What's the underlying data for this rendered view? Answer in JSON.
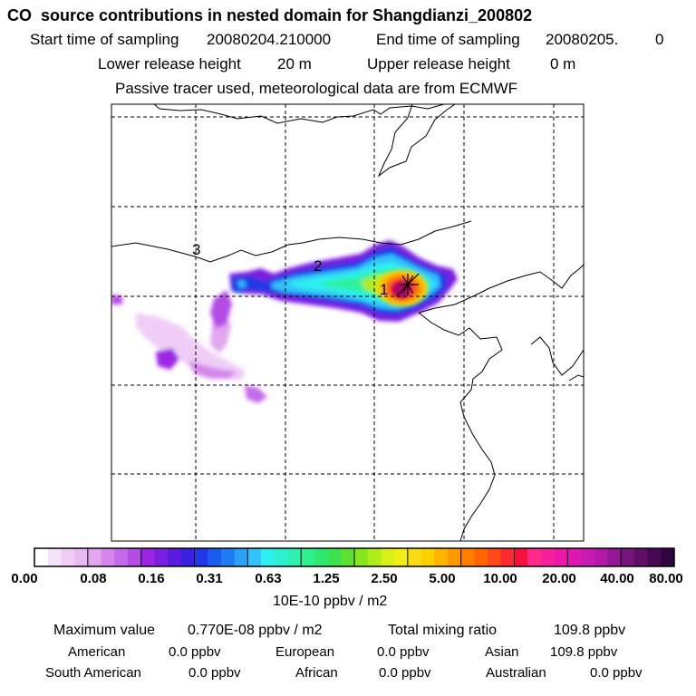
{
  "header": {
    "title": "CO  source contributions in nested domain for Shangdianzi_200802",
    "start_label": "Start time of sampling",
    "start_value": "20080204.210000",
    "end_label": "End time of sampling",
    "end_value": "20080205.",
    "end_suffix": "0",
    "lower_label": "Lower release height",
    "lower_value": "20 m",
    "upper_label": "Upper release height",
    "upper_value": "0 m",
    "note": "Passive tracer used, meteorological data are from ECMWF"
  },
  "map": {
    "markers": [
      "1",
      "2",
      "3"
    ],
    "receptor_symbol": "asterisk"
  },
  "colorbar": {
    "ticks": [
      "0.00",
      "0.08",
      "0.16",
      "0.31",
      "0.63",
      "1.25",
      "2.50",
      "5.00",
      "10.00",
      "20.00",
      "40.00",
      "80.00"
    ],
    "unit": "10E-10 ppbv / m2",
    "colors": [
      "#ffffff",
      "#f6e3fb",
      "#efcdf7",
      "#e8b9f3",
      "#e2a6ef",
      "#d486ec",
      "#c56ae8",
      "#b44ce6",
      "#9c25e3",
      "#7a1ee0",
      "#5a1cdc",
      "#3a20e0",
      "#2238e6",
      "#1a5cf0",
      "#1f7cf5",
      "#2aa0f8",
      "#33c2fa",
      "#2ff0f0",
      "#2ef0d0",
      "#2df0b0",
      "#2df090",
      "#2ee870",
      "#3ee04e",
      "#5ee030",
      "#84e41e",
      "#b0ec1a",
      "#d8f018",
      "#f0ee16",
      "#f8dd14",
      "#ffd000",
      "#ffb400",
      "#ff9a00",
      "#ff7e00",
      "#ff6400",
      "#ff4a1a",
      "#ff2a30",
      "#f5123f",
      "#ff2a8a",
      "#f5209a",
      "#ec18a8",
      "#dc18b0",
      "#c81ab4",
      "#b01aa6",
      "#941896",
      "#78147e",
      "#5e0e66",
      "#460850",
      "#300440"
    ]
  },
  "footer": {
    "max_label": "Maximum value",
    "max_value": "0.770E-08 ppbv / m2",
    "total_label": "Total mixing ratio",
    "total_value": "109.8 ppbv",
    "american_label": "American",
    "american_value": "0.0 ppbv",
    "european_label": "European",
    "european_value": "0.0 ppbv",
    "asian_label": "Asian",
    "asian_value": "109.8 ppbv",
    "south_american_label": "South American",
    "south_american_value": "0.0 ppbv",
    "african_label": "African",
    "african_value": "0.0 ppbv",
    "australian_label": "Australian",
    "australian_value": "0.0 ppbv"
  }
}
